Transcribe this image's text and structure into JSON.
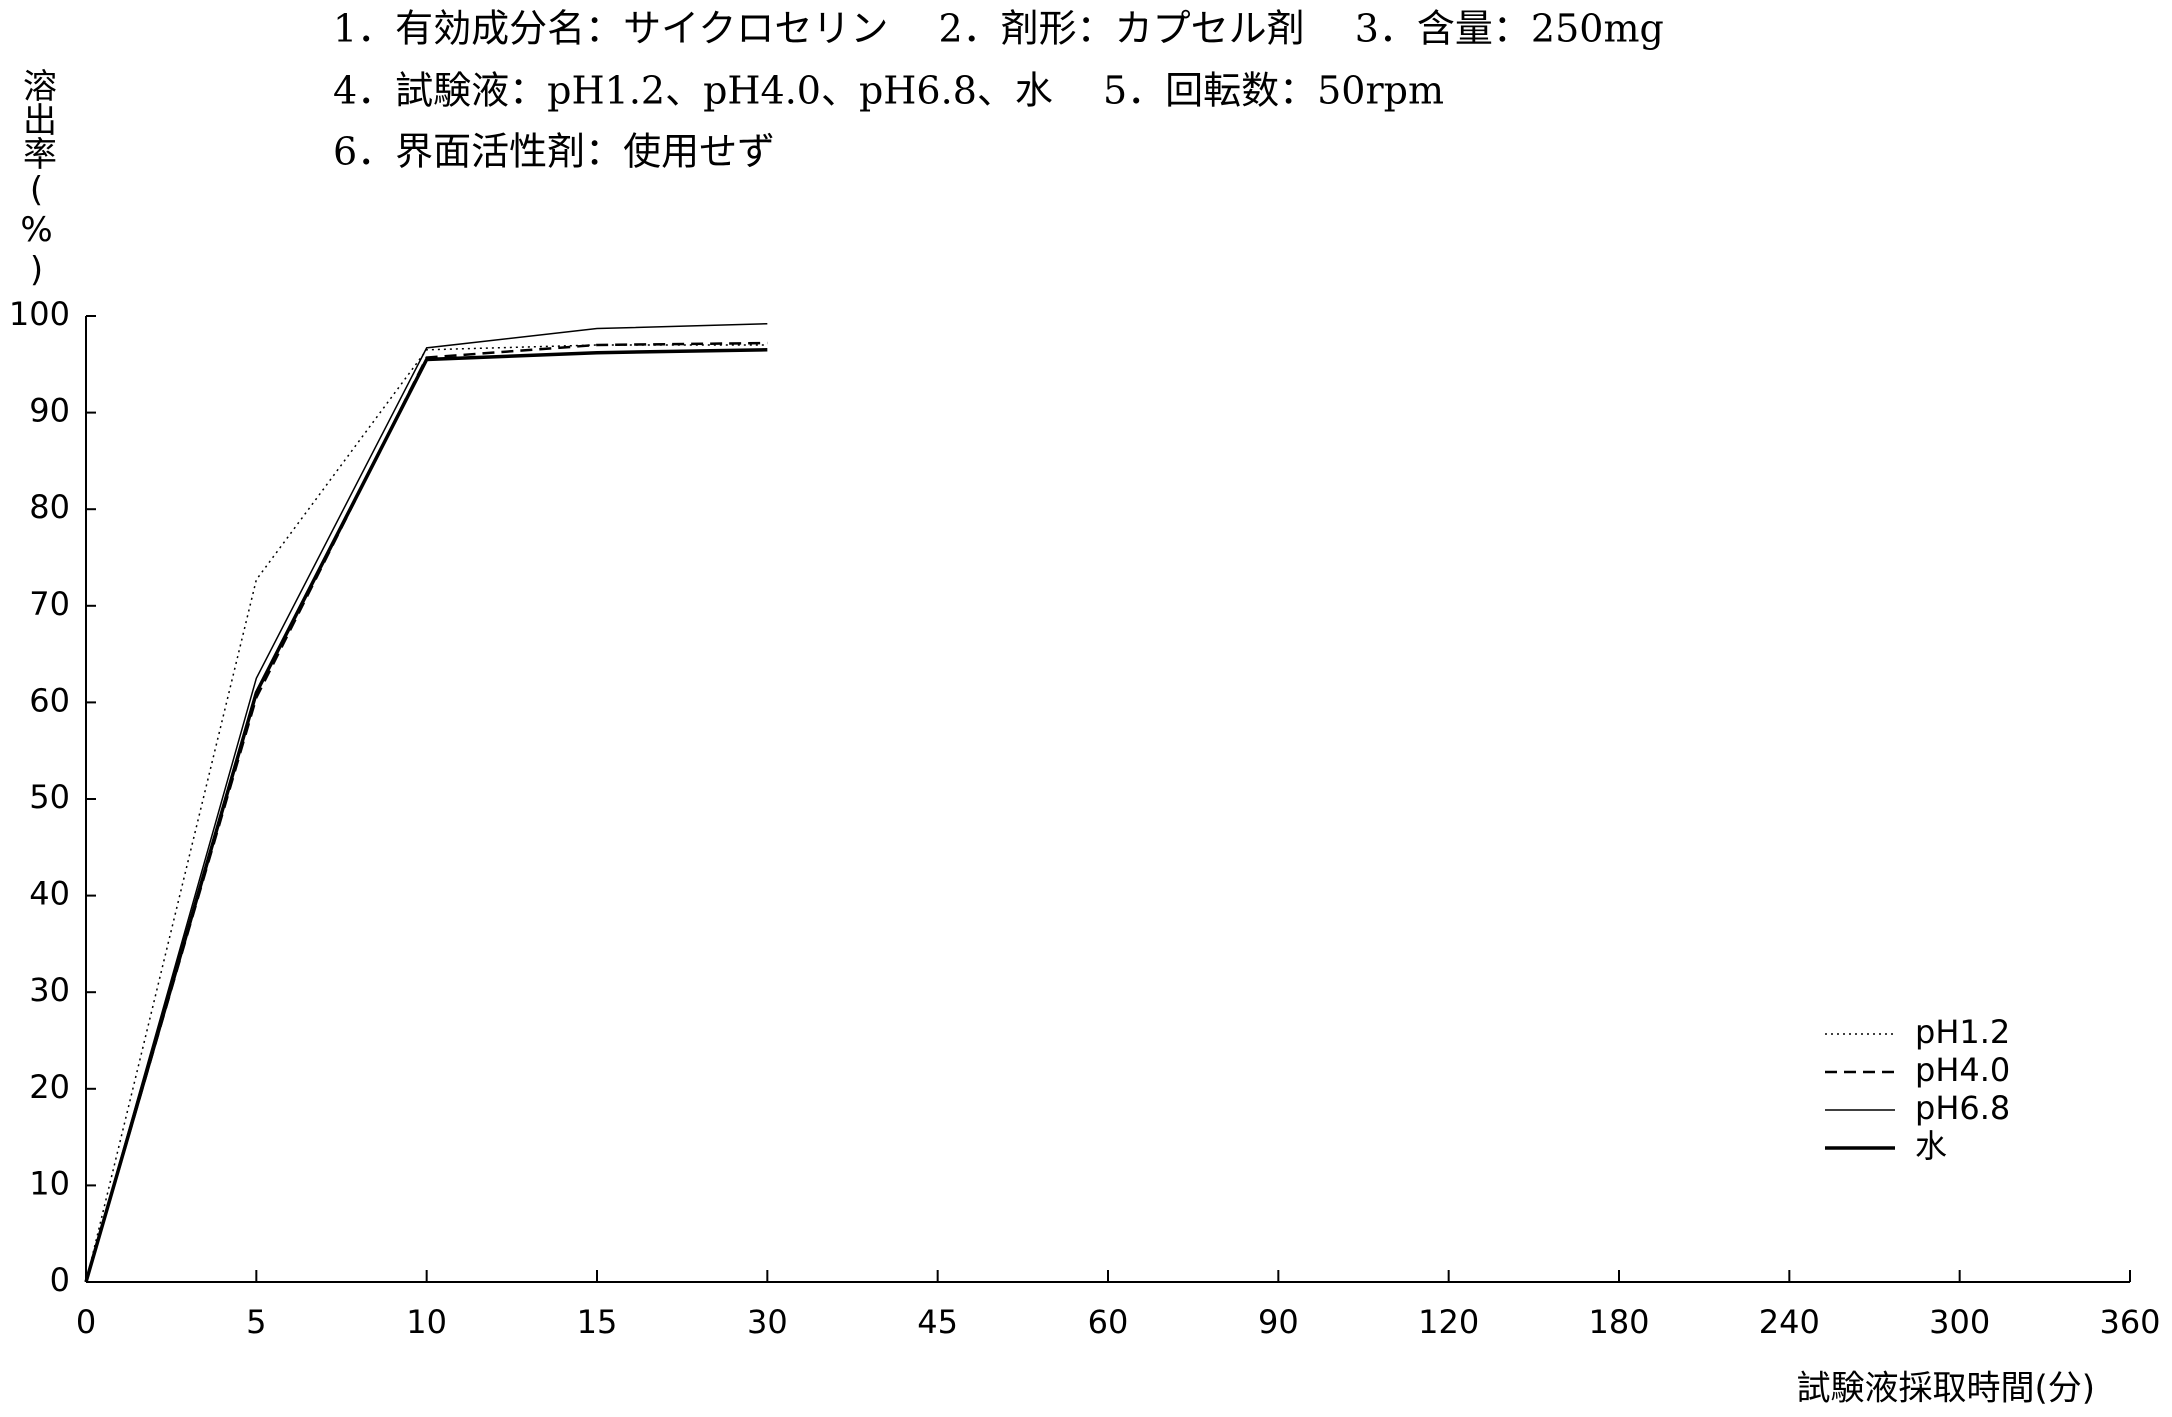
{
  "chart_data": {
    "type": "line",
    "title_lines": [
      "1．有効成分名：サイクロセリン　 2．剤形：カプセル剤　 3．含量：250mg",
      "4．試験液：pH1.2、pH4.0、pH6.8、水　 5．回転数：50rpm",
      "6．界面活性剤：使用せず"
    ],
    "y_label": "溶出率(%)",
    "x_label": "試験液採取時間(分)",
    "categories": [
      "0",
      "5",
      "10",
      "15",
      "30",
      "45",
      "60",
      "90",
      "120",
      "180",
      "240",
      "300",
      "360"
    ],
    "series": [
      {
        "name": "pH1.2",
        "color": "#000000",
        "style": "dotted",
        "linewidth": 1.5,
        "values": [
          0,
          72.7,
          96.5,
          97.0,
          97.0,
          null,
          null,
          null,
          null,
          null,
          null,
          null,
          null
        ]
      },
      {
        "name": "pH4.0",
        "color": "#000000",
        "style": "dashed",
        "linewidth": 2.5,
        "values": [
          0,
          60.5,
          95.7,
          97.0,
          97.2,
          null,
          null,
          null,
          null,
          null,
          null,
          null,
          null
        ]
      },
      {
        "name": "pH6.8",
        "color": "#000000",
        "style": "solid",
        "linewidth": 1.5,
        "values": [
          0,
          62.5,
          96.7,
          98.7,
          99.2,
          null,
          null,
          null,
          null,
          null,
          null,
          null,
          null
        ]
      },
      {
        "name": "水",
        "color": "#000000",
        "style": "solid",
        "linewidth": 3.5,
        "values": [
          0,
          61.0,
          95.5,
          96.2,
          96.5,
          null,
          null,
          null,
          null,
          null,
          null,
          null,
          null
        ]
      }
    ],
    "ylim": [
      0,
      100
    ],
    "yticks": [
      0,
      10,
      20,
      30,
      40,
      50,
      60,
      70,
      80,
      90,
      100
    ],
    "legend": "lower right"
  }
}
